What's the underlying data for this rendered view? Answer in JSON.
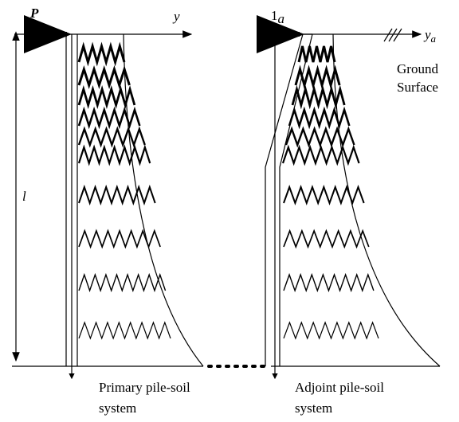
{
  "labels": {
    "load_primary": "P",
    "axis_primary": "y",
    "load_adjoint": {
      "base": "1",
      "sub": "a"
    },
    "axis_adjoint": {
      "base": "y",
      "sub": "a"
    },
    "ground": [
      "Ground",
      "Surface"
    ],
    "length": "l"
  },
  "captions": {
    "primary": [
      "Primary pile-soil",
      "system"
    ],
    "adjoint": [
      "Adjoint pile-soil",
      "system"
    ]
  }
}
